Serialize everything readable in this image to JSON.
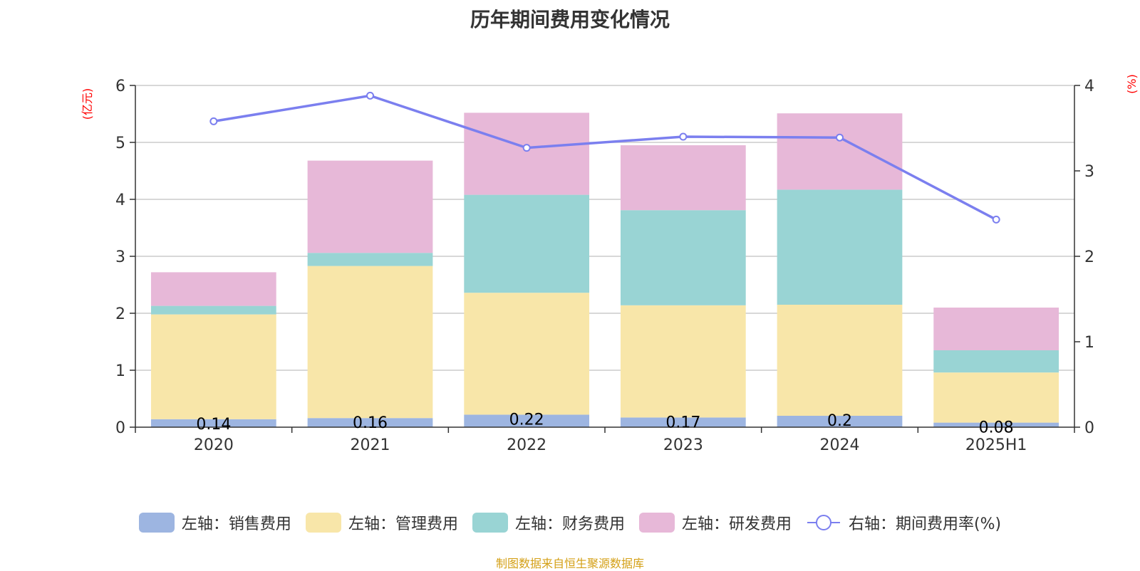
{
  "title": "历年期间费用变化情况",
  "source": "制图数据来自恒生聚源数据库",
  "chart_data": {
    "type": "bar",
    "stacked": true,
    "categories": [
      "2020",
      "2021",
      "2022",
      "2023",
      "2024",
      "2025H1"
    ],
    "left_axis": {
      "unit": "(亿元)",
      "ylim": [
        0,
        6
      ],
      "ticks": [
        0,
        1,
        2,
        3,
        4,
        5,
        6
      ]
    },
    "right_axis": {
      "unit": "(%)",
      "ylim": [
        0,
        4
      ],
      "ticks": [
        0,
        1,
        2,
        3,
        4
      ]
    },
    "series": [
      {
        "name": "左轴：销售费用",
        "axis": "left",
        "color": "#9db5e1",
        "values": [
          0.14,
          0.16,
          0.22,
          0.17,
          0.2,
          0.08
        ],
        "labels": [
          "0.14",
          "0.16",
          "0.22",
          "0.17",
          "0.2",
          "0.08"
        ]
      },
      {
        "name": "左轴：管理费用",
        "axis": "left",
        "color": "#f8e6a9",
        "values": [
          1.84,
          2.67,
          2.14,
          1.97,
          1.95,
          0.88
        ]
      },
      {
        "name": "左轴：财务费用",
        "axis": "left",
        "color": "#99d4d4",
        "values": [
          0.15,
          0.23,
          1.72,
          1.67,
          2.02,
          0.39
        ]
      },
      {
        "name": "左轴：研发费用",
        "axis": "left",
        "color": "#e7b8d8",
        "values": [
          0.59,
          1.62,
          1.44,
          1.14,
          1.34,
          0.75
        ]
      },
      {
        "name": "右轴：期间费用率(%)",
        "axis": "right",
        "type": "line",
        "color": "#7b7fef",
        "values": [
          3.58,
          3.88,
          3.27,
          3.4,
          3.39,
          2.43
        ]
      }
    ],
    "grid": true,
    "legend_position": "bottom"
  }
}
